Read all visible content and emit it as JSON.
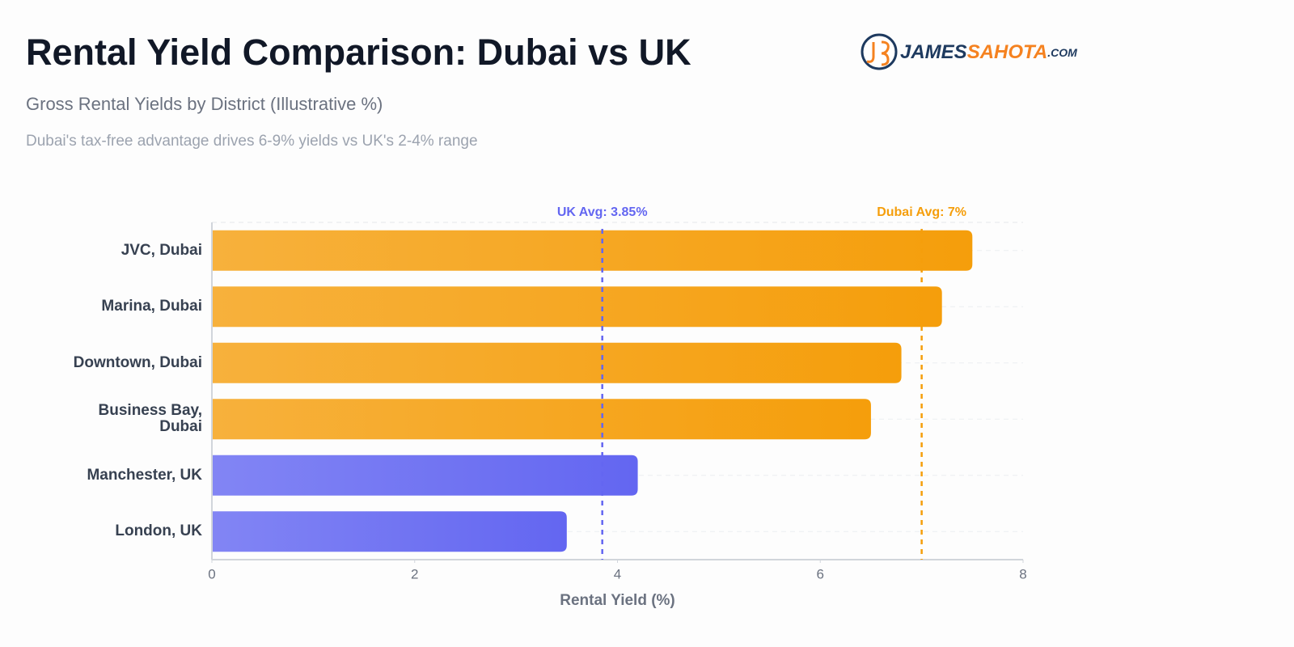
{
  "chart_data": {
    "type": "bar",
    "orientation": "horizontal",
    "title": "Rental Yield Comparison: Dubai vs UK",
    "subtitle": "Gross Rental Yields by District (Illustrative %)",
    "note": "Dubai's tax-free advantage drives 6-9% yields vs UK's 2-4% range",
    "logo": [
      "JAMES",
      "SAHOTA",
      ".COM"
    ],
    "categories": [
      "JVC, Dubai",
      "Marina, Dubai",
      "Downtown, Dubai",
      "Business Bay, Dubai",
      "Manchester, UK",
      "London, UK"
    ],
    "values": [
      7.5,
      7.2,
      6.8,
      6.5,
      4.2,
      3.5
    ],
    "colors": [
      "#f59e0b",
      "#f59e0b",
      "#f59e0b",
      "#f59e0b",
      "#6366f1",
      "#6366f1"
    ],
    "xlabel": "Rental Yield (%)",
    "xlim": [
      0,
      8
    ],
    "xticks": [
      0,
      2,
      4,
      6,
      8
    ],
    "reference_lines": [
      {
        "label": "UK Avg: 3.85%",
        "value": 3.85,
        "color": "#6366f1"
      },
      {
        "label": "Dubai Avg: 7%",
        "value": 7,
        "color": "#f59e0b"
      }
    ]
  }
}
